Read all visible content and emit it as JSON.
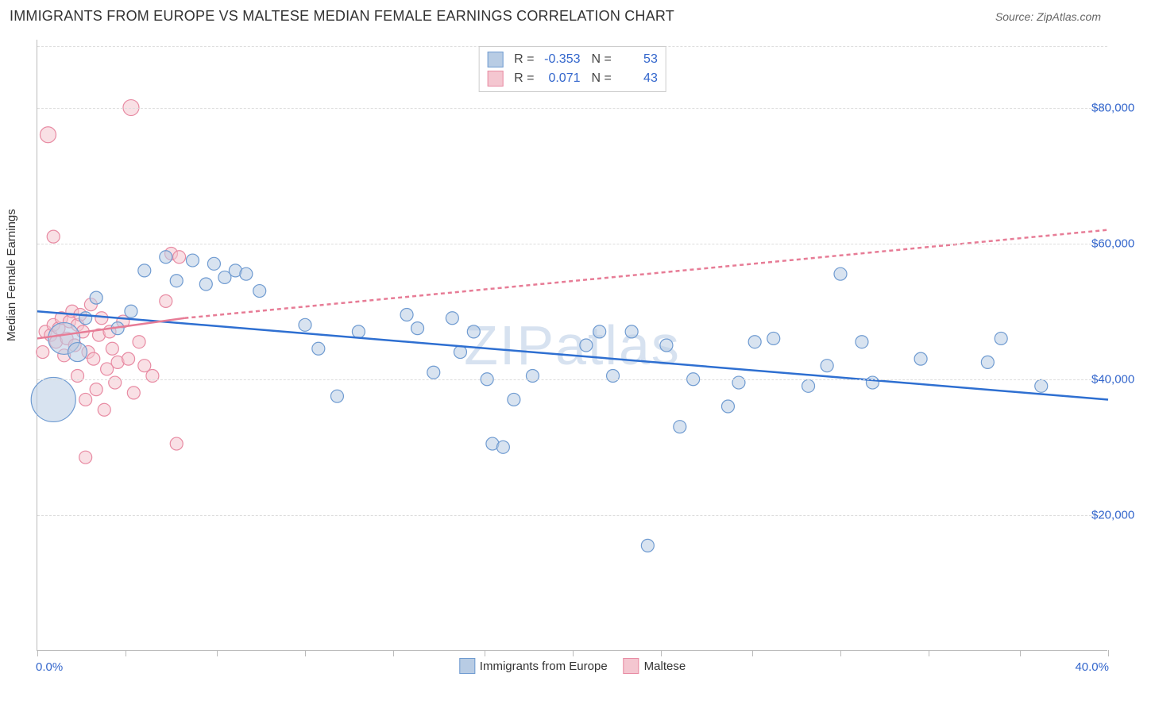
{
  "header": {
    "title": "IMMIGRANTS FROM EUROPE VS MALTESE MEDIAN FEMALE EARNINGS CORRELATION CHART",
    "source_prefix": "Source: ",
    "source_name": "ZipAtlas.com"
  },
  "chart": {
    "type": "scatter",
    "ylabel": "Median Female Earnings",
    "watermark": "ZIPatlas",
    "background_color": "#ffffff",
    "grid_color": "#dddddd",
    "axis_color": "#bbbbbb",
    "tick_label_color": "#3366cc",
    "xlim": [
      0,
      40
    ],
    "ylim": [
      0,
      90000
    ],
    "xticks": [
      0,
      3.3,
      6.7,
      10,
      13.3,
      16.7,
      20,
      23.3,
      26.7,
      30,
      33.3,
      36.7,
      40
    ],
    "xlimit_labels": {
      "min": "0.0%",
      "max": "40.0%"
    },
    "yticks": [
      {
        "value": 20000,
        "label": "$20,000"
      },
      {
        "value": 40000,
        "label": "$40,000"
      },
      {
        "value": 60000,
        "label": "$60,000"
      },
      {
        "value": 80000,
        "label": "$80,000"
      }
    ],
    "series": [
      {
        "name": "Immigrants from Europe",
        "fill_color": "#b8cce4",
        "stroke_color": "#6f9bd1",
        "line_color": "#2e6fd1",
        "line_dash": "none",
        "R": "-0.353",
        "N": "53",
        "regression": {
          "x1": 0,
          "y1": 50000,
          "x2": 40,
          "y2": 37000
        },
        "points": [
          {
            "x": 0.6,
            "y": 37000,
            "r": 28
          },
          {
            "x": 1.0,
            "y": 46000,
            "r": 20
          },
          {
            "x": 1.5,
            "y": 44000,
            "r": 12
          },
          {
            "x": 1.8,
            "y": 49000,
            "r": 8
          },
          {
            "x": 2.2,
            "y": 52000,
            "r": 8
          },
          {
            "x": 3.0,
            "y": 47500,
            "r": 8
          },
          {
            "x": 3.5,
            "y": 50000,
            "r": 8
          },
          {
            "x": 4.0,
            "y": 56000,
            "r": 8
          },
          {
            "x": 4.8,
            "y": 58000,
            "r": 8
          },
          {
            "x": 5.2,
            "y": 54500,
            "r": 8
          },
          {
            "x": 5.8,
            "y": 57500,
            "r": 8
          },
          {
            "x": 6.3,
            "y": 54000,
            "r": 8
          },
          {
            "x": 6.6,
            "y": 57000,
            "r": 8
          },
          {
            "x": 7.0,
            "y": 55000,
            "r": 8
          },
          {
            "x": 7.4,
            "y": 56000,
            "r": 8
          },
          {
            "x": 7.8,
            "y": 55500,
            "r": 8
          },
          {
            "x": 8.3,
            "y": 53000,
            "r": 8
          },
          {
            "x": 10.0,
            "y": 48000,
            "r": 8
          },
          {
            "x": 10.5,
            "y": 44500,
            "r": 8
          },
          {
            "x": 11.2,
            "y": 37500,
            "r": 8
          },
          {
            "x": 12.0,
            "y": 47000,
            "r": 8
          },
          {
            "x": 13.8,
            "y": 49500,
            "r": 8
          },
          {
            "x": 14.2,
            "y": 47500,
            "r": 8
          },
          {
            "x": 14.8,
            "y": 41000,
            "r": 8
          },
          {
            "x": 15.5,
            "y": 49000,
            "r": 8
          },
          {
            "x": 15.8,
            "y": 44000,
            "r": 8
          },
          {
            "x": 16.3,
            "y": 47000,
            "r": 8
          },
          {
            "x": 16.8,
            "y": 40000,
            "r": 8
          },
          {
            "x": 17.0,
            "y": 30500,
            "r": 8
          },
          {
            "x": 17.4,
            "y": 30000,
            "r": 8
          },
          {
            "x": 17.8,
            "y": 37000,
            "r": 8
          },
          {
            "x": 18.5,
            "y": 40500,
            "r": 8
          },
          {
            "x": 20.5,
            "y": 45000,
            "r": 8
          },
          {
            "x": 21.0,
            "y": 47000,
            "r": 8
          },
          {
            "x": 21.5,
            "y": 40500,
            "r": 8
          },
          {
            "x": 22.2,
            "y": 47000,
            "r": 8
          },
          {
            "x": 22.8,
            "y": 15500,
            "r": 8
          },
          {
            "x": 23.5,
            "y": 45000,
            "r": 8
          },
          {
            "x": 24.0,
            "y": 33000,
            "r": 8
          },
          {
            "x": 24.5,
            "y": 40000,
            "r": 8
          },
          {
            "x": 25.8,
            "y": 36000,
            "r": 8
          },
          {
            "x": 26.2,
            "y": 39500,
            "r": 8
          },
          {
            "x": 26.8,
            "y": 45500,
            "r": 8
          },
          {
            "x": 27.5,
            "y": 46000,
            "r": 8
          },
          {
            "x": 28.8,
            "y": 39000,
            "r": 8
          },
          {
            "x": 29.5,
            "y": 42000,
            "r": 8
          },
          {
            "x": 30.0,
            "y": 55500,
            "r": 8
          },
          {
            "x": 30.8,
            "y": 45500,
            "r": 8
          },
          {
            "x": 31.2,
            "y": 39500,
            "r": 8
          },
          {
            "x": 33.0,
            "y": 43000,
            "r": 8
          },
          {
            "x": 35.5,
            "y": 42500,
            "r": 8
          },
          {
            "x": 36.0,
            "y": 46000,
            "r": 8
          },
          {
            "x": 37.5,
            "y": 39000,
            "r": 8
          }
        ]
      },
      {
        "name": "Maltese",
        "fill_color": "#f4c6d0",
        "stroke_color": "#e88ba3",
        "line_color": "#e77c96",
        "line_dash": "5,4",
        "R": "0.071",
        "N": "43",
        "regression_solid": {
          "x1": 0,
          "y1": 46000,
          "x2": 5.5,
          "y2": 49000
        },
        "regression": {
          "x1": 5.5,
          "y1": 49000,
          "x2": 40,
          "y2": 62000
        },
        "points": [
          {
            "x": 0.2,
            "y": 44000,
            "r": 8
          },
          {
            "x": 0.3,
            "y": 47000,
            "r": 8
          },
          {
            "x": 0.5,
            "y": 46500,
            "r": 8
          },
          {
            "x": 0.6,
            "y": 48000,
            "r": 8
          },
          {
            "x": 0.7,
            "y": 45500,
            "r": 8
          },
          {
            "x": 0.8,
            "y": 47500,
            "r": 8
          },
          {
            "x": 0.9,
            "y": 49000,
            "r": 8
          },
          {
            "x": 1.0,
            "y": 43500,
            "r": 8
          },
          {
            "x": 1.1,
            "y": 46000,
            "r": 8
          },
          {
            "x": 0.6,
            "y": 61000,
            "r": 8
          },
          {
            "x": 0.4,
            "y": 76000,
            "r": 10
          },
          {
            "x": 1.2,
            "y": 48500,
            "r": 8
          },
          {
            "x": 1.3,
            "y": 50000,
            "r": 8
          },
          {
            "x": 1.4,
            "y": 45000,
            "r": 8
          },
          {
            "x": 1.5,
            "y": 48000,
            "r": 8
          },
          {
            "x": 1.5,
            "y": 40500,
            "r": 8
          },
          {
            "x": 1.6,
            "y": 49500,
            "r": 8
          },
          {
            "x": 1.7,
            "y": 47000,
            "r": 8
          },
          {
            "x": 1.8,
            "y": 37000,
            "r": 8
          },
          {
            "x": 1.9,
            "y": 44000,
            "r": 8
          },
          {
            "x": 2.0,
            "y": 51000,
            "r": 8
          },
          {
            "x": 2.1,
            "y": 43000,
            "r": 8
          },
          {
            "x": 2.2,
            "y": 38500,
            "r": 8
          },
          {
            "x": 1.8,
            "y": 28500,
            "r": 8
          },
          {
            "x": 2.3,
            "y": 46500,
            "r": 8
          },
          {
            "x": 2.4,
            "y": 49000,
            "r": 8
          },
          {
            "x": 2.5,
            "y": 35500,
            "r": 8
          },
          {
            "x": 2.6,
            "y": 41500,
            "r": 8
          },
          {
            "x": 2.7,
            "y": 47000,
            "r": 8
          },
          {
            "x": 2.8,
            "y": 44500,
            "r": 8
          },
          {
            "x": 2.9,
            "y": 39500,
            "r": 8
          },
          {
            "x": 3.0,
            "y": 42500,
            "r": 8
          },
          {
            "x": 3.5,
            "y": 80000,
            "r": 10
          },
          {
            "x": 3.2,
            "y": 48500,
            "r": 8
          },
          {
            "x": 3.4,
            "y": 43000,
            "r": 8
          },
          {
            "x": 3.6,
            "y": 38000,
            "r": 8
          },
          {
            "x": 3.8,
            "y": 45500,
            "r": 8
          },
          {
            "x": 4.0,
            "y": 42000,
            "r": 8
          },
          {
            "x": 4.3,
            "y": 40500,
            "r": 8
          },
          {
            "x": 4.8,
            "y": 51500,
            "r": 8
          },
          {
            "x": 5.0,
            "y": 58500,
            "r": 8
          },
          {
            "x": 5.2,
            "y": 30500,
            "r": 8
          },
          {
            "x": 5.3,
            "y": 58000,
            "r": 8
          }
        ]
      }
    ],
    "legend_top": {
      "stat_labels": {
        "r": "R =",
        "n": "N ="
      }
    },
    "legend_bottom": [
      {
        "label": "Immigrants from Europe",
        "fill": "#b8cce4",
        "stroke": "#6f9bd1"
      },
      {
        "label": "Maltese",
        "fill": "#f4c6d0",
        "stroke": "#e88ba3"
      }
    ]
  }
}
